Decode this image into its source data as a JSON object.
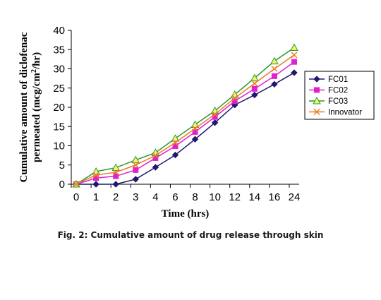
{
  "chart_data": {
    "type": "line",
    "title": "",
    "xlabel": "Time (hrs)",
    "ylabel_line1": "Cumulative amount of diclofenac",
    "ylabel_line2_before": "permeated (mcg/cm",
    "ylabel_sup": "2",
    "ylabel_line2_after": "/hr)",
    "categories": [
      "0",
      "1",
      "2",
      "3",
      "4",
      "6",
      "8",
      "10",
      "12",
      "14",
      "16",
      "24"
    ],
    "yticks": [
      "0",
      "5",
      "10",
      "15",
      "20",
      "25",
      "30",
      "35",
      "40"
    ],
    "ylim": [
      0,
      40
    ],
    "grid": false,
    "legend_position": "right",
    "series": [
      {
        "name": "FC01",
        "color": "#1f1a6e",
        "marker": "diamond",
        "values": [
          0,
          0,
          0,
          1.3,
          4.4,
          7.6,
          11.7,
          16.0,
          20.6,
          23.2,
          26.0,
          29.0
        ]
      },
      {
        "name": "FC02",
        "color": "#e020d0",
        "marker": "square",
        "values": [
          0,
          1.6,
          2.1,
          3.7,
          6.8,
          9.9,
          13.6,
          17.5,
          21.6,
          24.8,
          28.1,
          31.8
        ]
      },
      {
        "name": "FC03",
        "color": "#2a9a2a",
        "marker": "triangle",
        "values": [
          0,
          3.3,
          4.3,
          6.3,
          8.2,
          11.9,
          15.5,
          19.1,
          23.3,
          27.6,
          32.0,
          35.5
        ]
      },
      {
        "name": "Innovator",
        "color": "#f07a20",
        "marker": "x",
        "values": [
          0,
          2.4,
          3.1,
          5.0,
          7.5,
          10.8,
          14.5,
          18.2,
          22.4,
          26.2,
          30.0,
          33.6
        ]
      }
    ]
  },
  "caption": "Fig. 2: Cumulative amount of drug release through skin"
}
